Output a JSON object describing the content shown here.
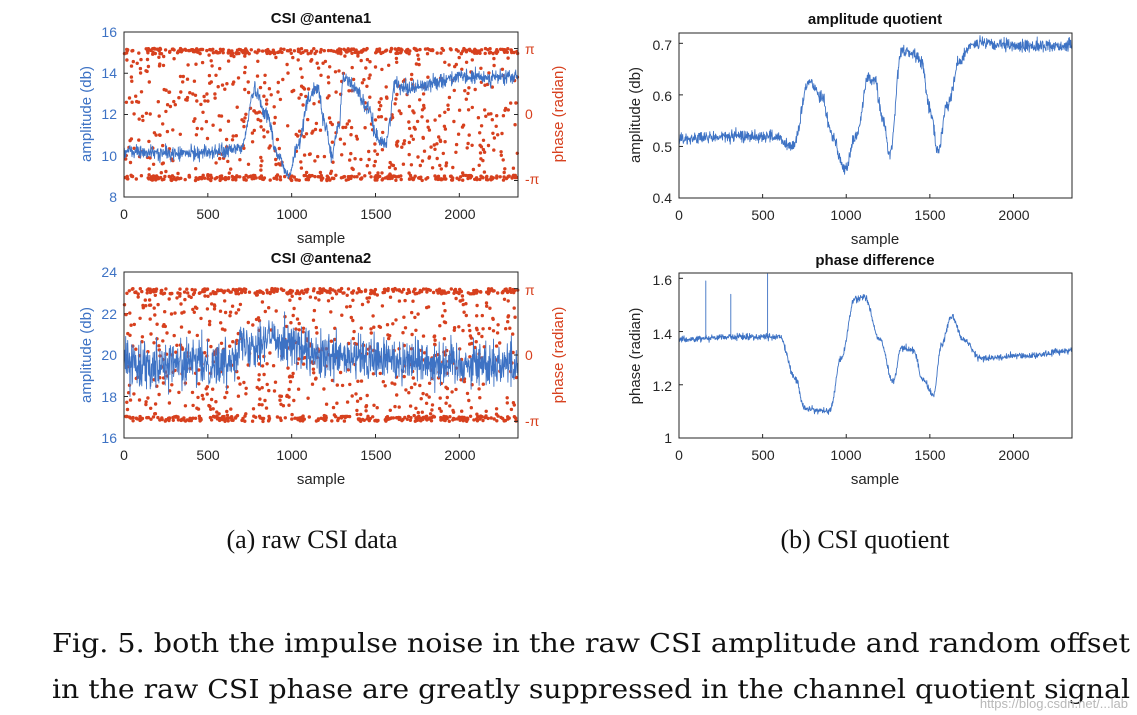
{
  "colors": {
    "amplitude": "#3d72c4",
    "phase": "#d7401e",
    "axis": "#262626",
    "text": "#111111"
  },
  "chart_data": [
    {
      "id": "csi-antena1",
      "type": "line+scatter",
      "title": "CSI @antena1",
      "xlabel": "sample",
      "ylabel": "amplitude (db)",
      "ylabel_right": "phase (radian)",
      "xlim": [
        0,
        2350
      ],
      "ylim": [
        8,
        16
      ],
      "xticks": [
        "0",
        "500",
        "1000",
        "1500",
        "2000"
      ],
      "yticks": [
        "8",
        "10",
        "12",
        "14",
        "16"
      ],
      "yticks_right": [
        "-π",
        "0",
        "π"
      ],
      "series": [
        {
          "name": "amplitude",
          "axis": "left",
          "kind": "line",
          "noise": 0.35,
          "points": [
            [
              0,
              10.2
            ],
            [
              300,
              10.1
            ],
            [
              600,
              10.2
            ],
            [
              700,
              10.4
            ],
            [
              780,
              13.2
            ],
            [
              850,
              12.0
            ],
            [
              920,
              10.0
            ],
            [
              980,
              9.0
            ],
            [
              1040,
              10.5
            ],
            [
              1100,
              12.8
            ],
            [
              1150,
              13.3
            ],
            [
              1200,
              11.5
            ],
            [
              1240,
              10.0
            ],
            [
              1280,
              11.5
            ],
            [
              1310,
              13.8
            ],
            [
              1380,
              13.3
            ],
            [
              1450,
              12.3
            ],
            [
              1520,
              10.8
            ],
            [
              1560,
              10.6
            ],
            [
              1620,
              13.5
            ],
            [
              1700,
              13.3
            ],
            [
              2000,
              13.8
            ],
            [
              2350,
              13.8
            ]
          ]
        },
        {
          "name": "phase",
          "axis": "right",
          "kind": "scatter",
          "count": 1100,
          "range": [
            -3.1416,
            3.1416
          ],
          "edge_bias": 0.45
        }
      ]
    },
    {
      "id": "csi-antena2",
      "type": "line+scatter",
      "title": "CSI @antena2",
      "xlabel": "sample",
      "ylabel": "amplitude (db)",
      "ylabel_right": "phase (radian)",
      "xlim": [
        0,
        2350
      ],
      "ylim": [
        16,
        24
      ],
      "xticks": [
        "0",
        "500",
        "1000",
        "1500",
        "2000"
      ],
      "yticks": [
        "16",
        "18",
        "20",
        "22",
        "24"
      ],
      "yticks_right": [
        "-π",
        "0",
        "π"
      ],
      "series": [
        {
          "name": "amplitude",
          "axis": "left",
          "kind": "line",
          "noise": 1.1,
          "points": [
            [
              0,
              19.6
            ],
            [
              600,
              19.6
            ],
            [
              700,
              20.5
            ],
            [
              900,
              20.8
            ],
            [
              1200,
              19.8
            ],
            [
              1600,
              19.8
            ],
            [
              2000,
              19.6
            ],
            [
              2350,
              19.6
            ]
          ]
        },
        {
          "name": "phase",
          "axis": "right",
          "kind": "scatter",
          "count": 1100,
          "range": [
            -3.1416,
            3.1416
          ],
          "edge_bias": 0.45
        }
      ]
    },
    {
      "id": "amplitude-quotient",
      "type": "line",
      "title": "amplitude quotient",
      "xlabel": "sample",
      "ylabel": "amplitude (db)",
      "xlim": [
        0,
        2350
      ],
      "ylim": [
        0.4,
        0.72
      ],
      "xticks": [
        "0",
        "500",
        "1000",
        "1500",
        "2000"
      ],
      "yticks": [
        "0.4",
        "0.5",
        "0.6",
        "0.7"
      ],
      "ytick_values": [
        0.4,
        0.5,
        0.6,
        0.7
      ],
      "series": [
        {
          "name": "amplitude quotient",
          "axis": "left",
          "kind": "line",
          "noise": 0.012,
          "points": [
            [
              0,
              0.515
            ],
            [
              400,
              0.52
            ],
            [
              550,
              0.52
            ],
            [
              680,
              0.5
            ],
            [
              780,
              0.625
            ],
            [
              850,
              0.6
            ],
            [
              920,
              0.52
            ],
            [
              990,
              0.455
            ],
            [
              1060,
              0.52
            ],
            [
              1130,
              0.63
            ],
            [
              1170,
              0.63
            ],
            [
              1220,
              0.55
            ],
            [
              1260,
              0.485
            ],
            [
              1330,
              0.685
            ],
            [
              1400,
              0.68
            ],
            [
              1450,
              0.665
            ],
            [
              1500,
              0.57
            ],
            [
              1550,
              0.49
            ],
            [
              1600,
              0.58
            ],
            [
              1680,
              0.665
            ],
            [
              1750,
              0.7
            ],
            [
              2000,
              0.695
            ],
            [
              2350,
              0.695
            ]
          ]
        }
      ]
    },
    {
      "id": "phase-difference",
      "type": "line",
      "title": "phase difference",
      "xlabel": "sample",
      "ylabel": "phase (radian)",
      "xlim": [
        0,
        2350
      ],
      "ylim": [
        1,
        1.62
      ],
      "xticks": [
        "0",
        "500",
        "1000",
        "1500",
        "2000"
      ],
      "yticks": [
        "1",
        "1.2",
        "1.4",
        "1.6"
      ],
      "ytick_values": [
        1,
        1.2,
        1.4,
        1.6
      ],
      "series": [
        {
          "name": "phase difference",
          "axis": "left",
          "kind": "line",
          "noise": 0.012,
          "spikes": [
            [
              160,
              1.59
            ],
            [
              175,
              1.58
            ],
            [
              310,
              1.54
            ],
            [
              530,
              1.62
            ]
          ],
          "points": [
            [
              0,
              1.37
            ],
            [
              300,
              1.38
            ],
            [
              600,
              1.38
            ],
            [
              700,
              1.22
            ],
            [
              750,
              1.11
            ],
            [
              900,
              1.1
            ],
            [
              970,
              1.3
            ],
            [
              1050,
              1.52
            ],
            [
              1110,
              1.53
            ],
            [
              1200,
              1.37
            ],
            [
              1280,
              1.21
            ],
            [
              1330,
              1.34
            ],
            [
              1400,
              1.33
            ],
            [
              1460,
              1.22
            ],
            [
              1520,
              1.16
            ],
            [
              1570,
              1.35
            ],
            [
              1630,
              1.46
            ],
            [
              1700,
              1.37
            ],
            [
              1800,
              1.3
            ],
            [
              2100,
              1.31
            ],
            [
              2350,
              1.33
            ]
          ]
        }
      ]
    }
  ],
  "subcaptions": {
    "a": "(a)  raw CSI data",
    "b": "(b)  CSI quotient"
  },
  "caption": {
    "line1": "Fig. 5.  both the impulse noise in the raw CSI amplitude and random offset",
    "line2": "in the raw CSI phase are greatly suppressed in the channel quotient signal"
  },
  "watermark": "https://blog.csdn.net/...lab"
}
